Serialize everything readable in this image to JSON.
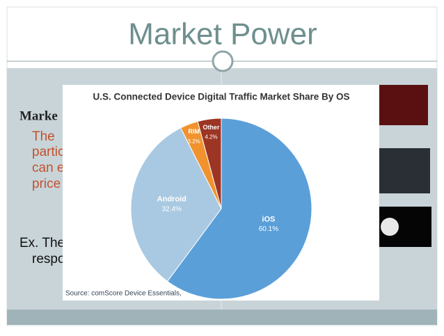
{
  "slide": {
    "title": "Market Power",
    "heading": "Marke",
    "body": [
      "The",
      "partic",
      "can e",
      "price"
    ],
    "example": [
      "Ex. The",
      "respo"
    ]
  },
  "chart_data": {
    "type": "pie",
    "title": "U.S. Connected Device Digital Traffic Market Share By OS",
    "categories": [
      "iOS",
      "Android",
      "RIM",
      "Other"
    ],
    "values": [
      60.1,
      32.4,
      3.2,
      4.2
    ],
    "value_labels": [
      "60.1%",
      "32.4%",
      "3.2%",
      "4.2%"
    ],
    "colors": [
      "#5b9fd9",
      "#a9c9e2",
      "#f0932f",
      "#9c3524"
    ],
    "source": "Source: comScore Device Essentials,"
  }
}
